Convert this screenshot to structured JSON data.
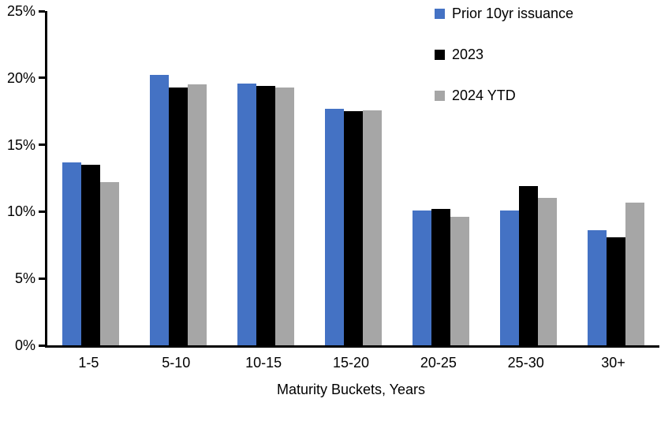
{
  "chart_data": {
    "type": "bar",
    "categories": [
      "1-5",
      "5-10",
      "10-15",
      "15-20",
      "20-25",
      "25-30",
      "30+"
    ],
    "series": [
      {
        "name": "Prior 10yr issuance",
        "color": "#4472C4",
        "values": [
          13.7,
          20.2,
          19.6,
          17.7,
          10.1,
          10.1,
          8.6
        ]
      },
      {
        "name": "2023",
        "color": "#000000",
        "values": [
          13.5,
          19.3,
          19.4,
          17.5,
          10.2,
          11.9,
          8.1
        ]
      },
      {
        "name": "2024 YTD",
        "color": "#A6A6A6",
        "values": [
          12.2,
          19.5,
          19.3,
          17.6,
          9.6,
          11.0,
          10.7
        ]
      }
    ],
    "xlabel": "Maturity Buckets, Years",
    "ylabel": "",
    "ylim": [
      0,
      25
    ],
    "y_tick_step": 5,
    "y_tick_labels": [
      "0%",
      "5%",
      "10%",
      "15%",
      "20%",
      "25%"
    ],
    "grid": false,
    "legend_position": "top-right",
    "axis_color": "#000000",
    "background_color": "#FFFFFF"
  }
}
